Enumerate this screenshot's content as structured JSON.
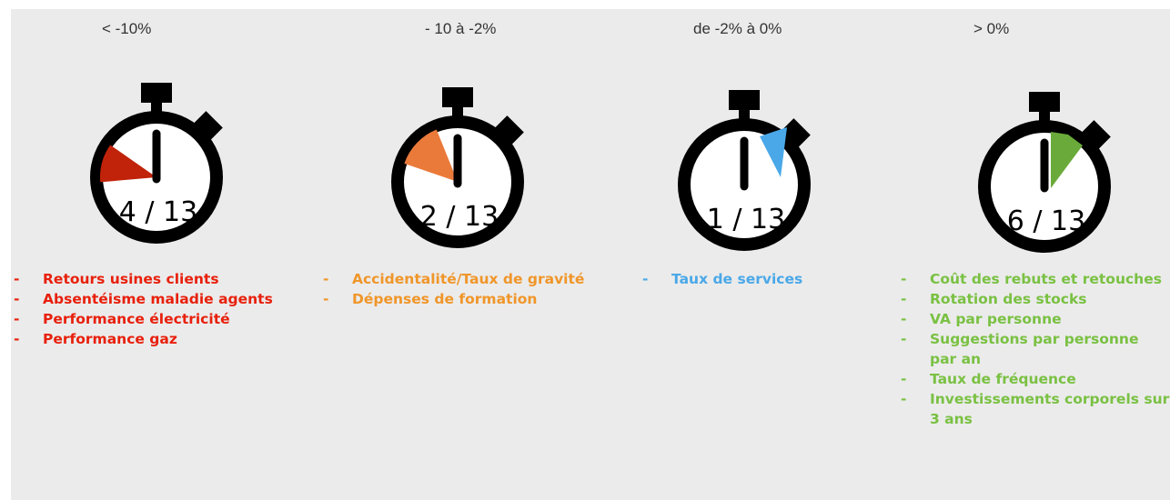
{
  "columns": [
    {
      "header": "< -10%",
      "count": "4 / 13",
      "items": [
        "Retours usines clients",
        "Absentéisme maladie agents",
        "Performance électricité",
        "Performance gaz"
      ]
    },
    {
      "header": "- 10 à -2%",
      "count": "2 / 13",
      "items": [
        "Accidentalité/Taux de gravité",
        "Dépenses de formation"
      ]
    },
    {
      "header": "de -2% à 0%",
      "count": "1 / 13",
      "items": [
        "Taux de services"
      ]
    },
    {
      "header": "> 0%",
      "count": "6 / 13",
      "items": [
        "Coût des rebuts et retouches",
        "Rotation des stocks",
        "VA par personne",
        "Suggestions par personne par an",
        "Taux de fréquence",
        "Investissements corporels sur 3 ans"
      ]
    }
  ]
}
